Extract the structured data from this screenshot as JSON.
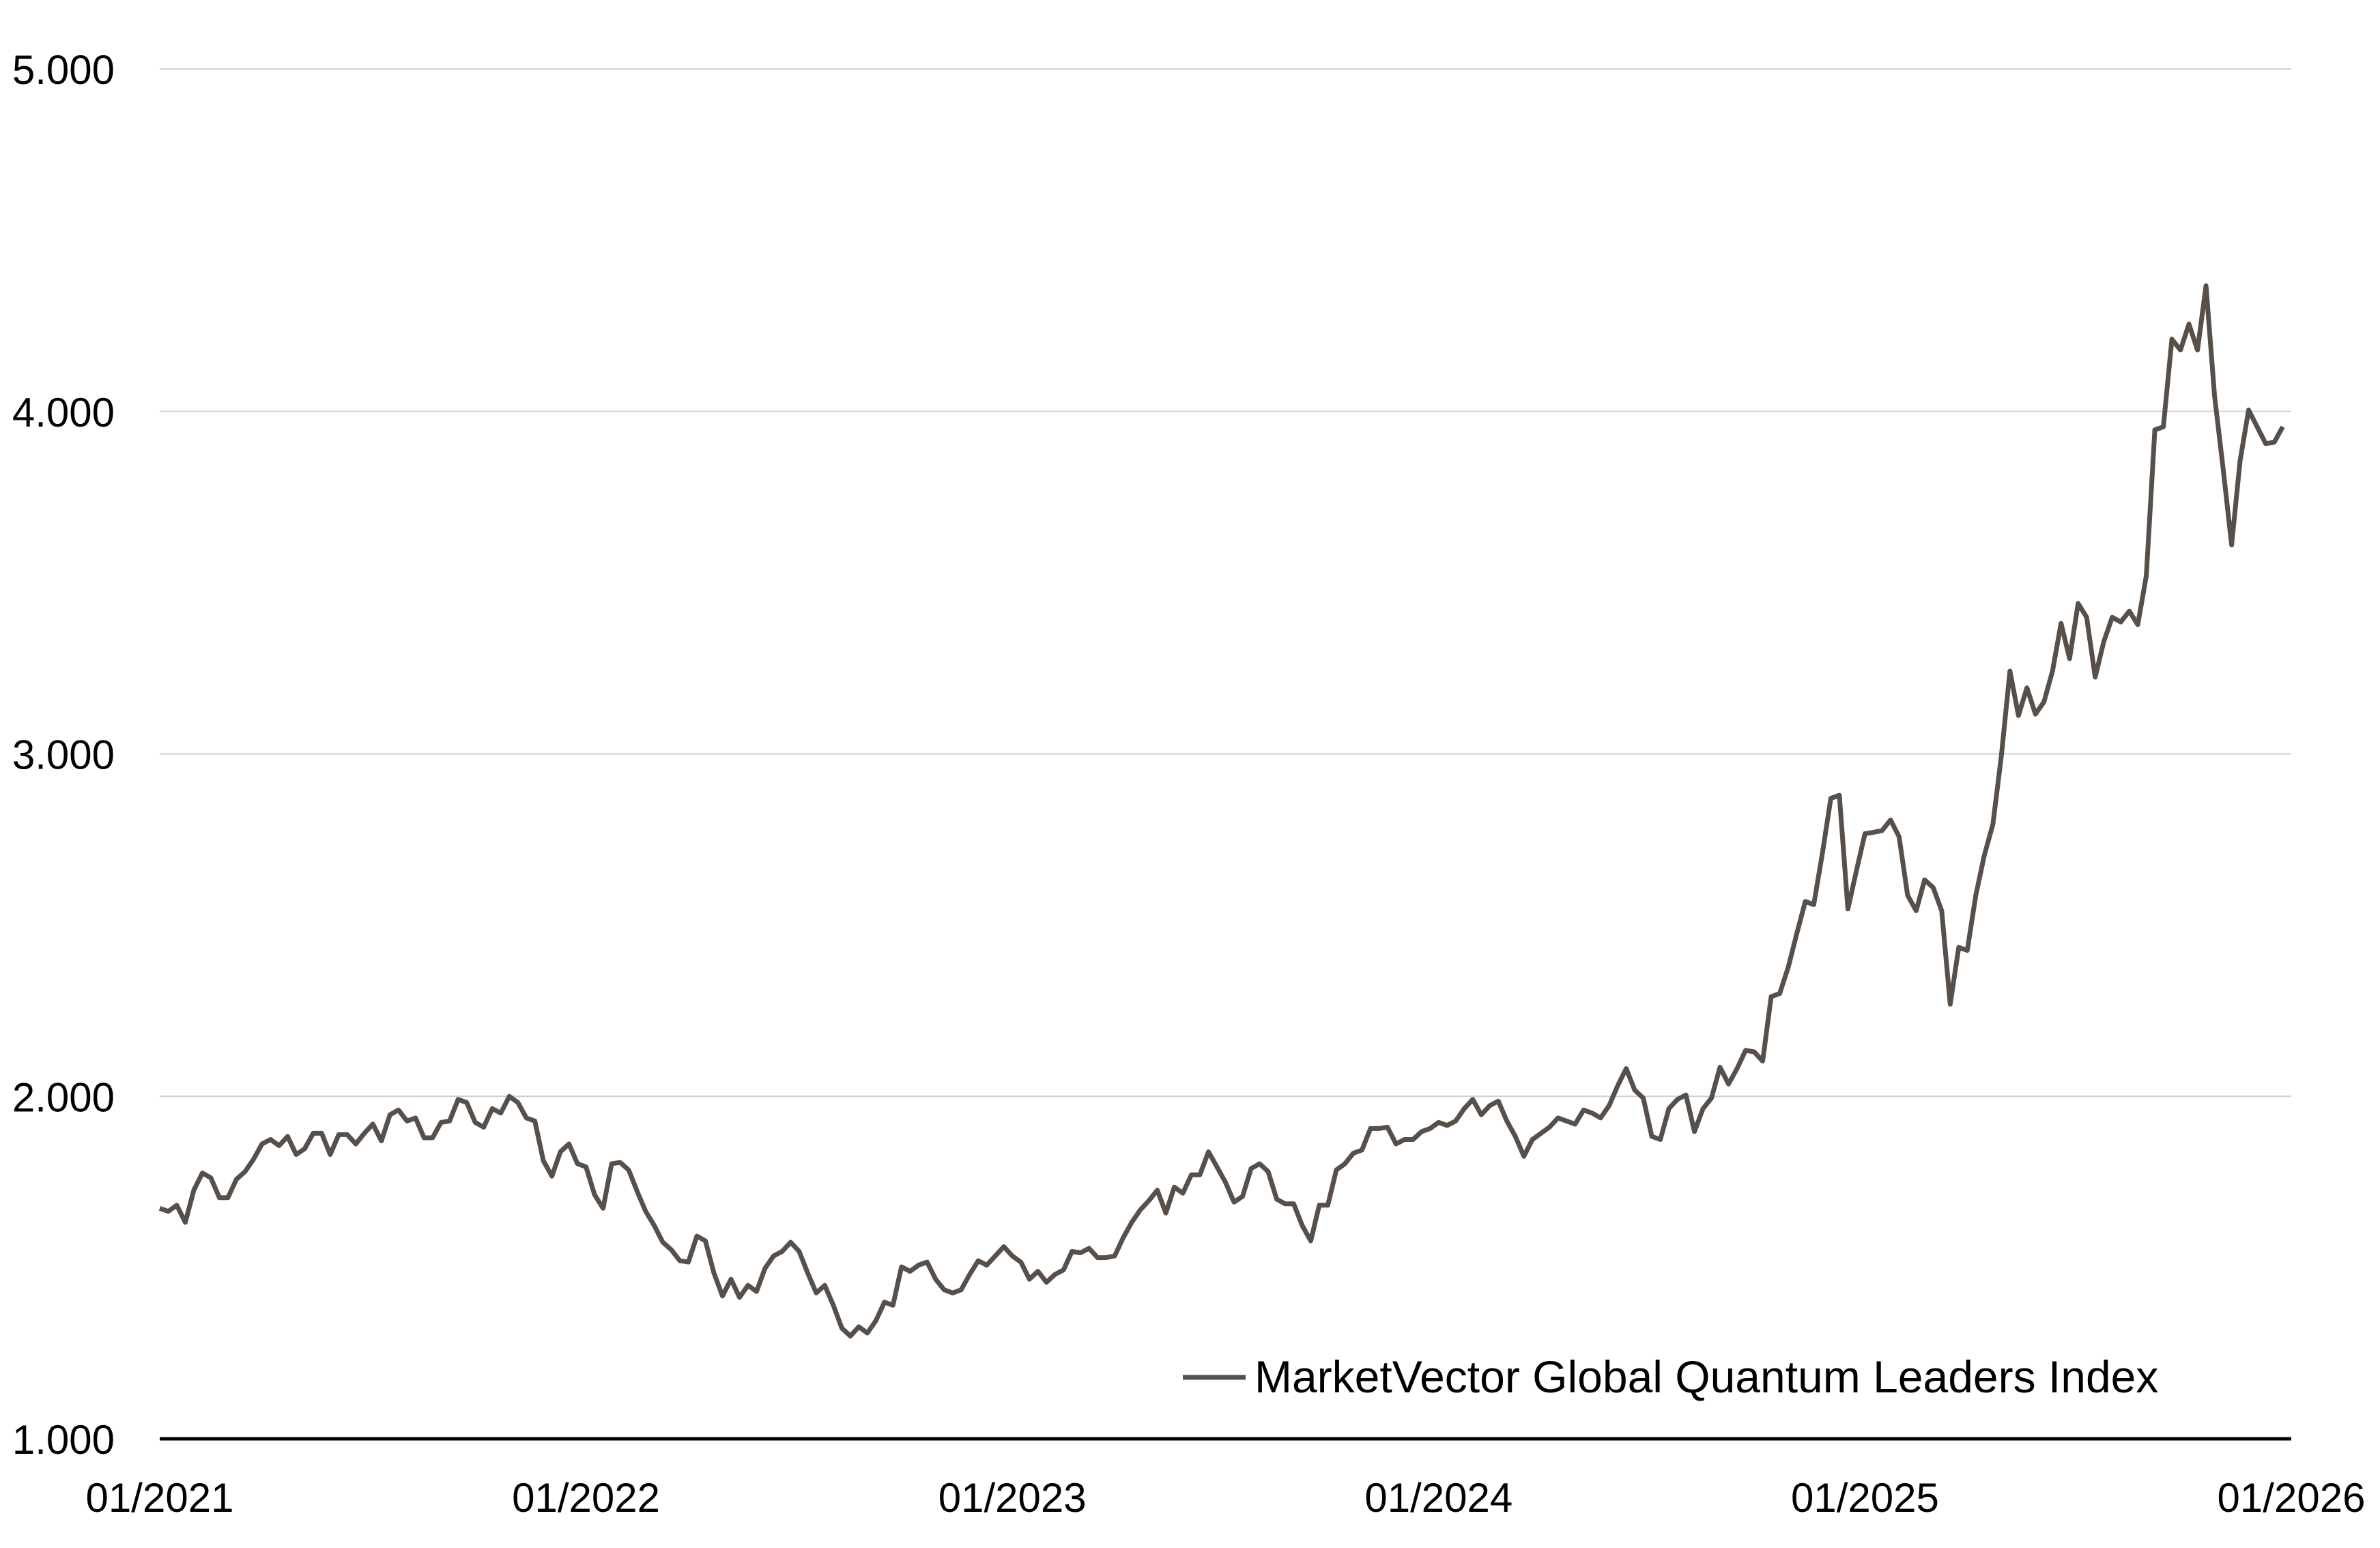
{
  "chart_data": {
    "type": "line",
    "title": "",
    "xlabel": "",
    "ylabel": "",
    "x_start": "01/2021",
    "x_end": "12/2025",
    "x_frequency": "weekly (approx.)",
    "xlim_years": [
      2021,
      2026
    ],
    "ylim": [
      1000,
      5000
    ],
    "y_ticks": [
      1000,
      2000,
      3000,
      4000,
      5000
    ],
    "y_tick_labels": [
      "1.000",
      "2.000",
      "3.000",
      "4.000",
      "5.000"
    ],
    "x_ticks": [
      2021,
      2022,
      2023,
      2024,
      2025,
      2026
    ],
    "x_tick_labels": [
      "01/2021",
      "01/2022",
      "01/2023",
      "01/2024",
      "01/2025",
      "01/2026"
    ],
    "grid": "horizontal",
    "legend_position": "bottom-right",
    "colors": {
      "line": "#574f4a",
      "grid": "#d0d0d0",
      "axis": "#000000"
    },
    "series": [
      {
        "name": "MarketVector Global Quantum Leaders Index",
        "values": [
          1673,
          1664,
          1682,
          1632,
          1726,
          1776,
          1762,
          1704,
          1704,
          1758,
          1780,
          1816,
          1861,
          1874,
          1856,
          1883,
          1830,
          1847,
          1892,
          1892,
          1830,
          1888,
          1888,
          1861,
          1892,
          1919,
          1870,
          1946,
          1960,
          1928,
          1937,
          1879,
          1879,
          1924,
          1928,
          1991,
          1982,
          1924,
          1910,
          1964,
          1951,
          2000,
          1982,
          1937,
          1928,
          1812,
          1767,
          1838,
          1861,
          1803,
          1794,
          1713,
          1673,
          1803,
          1807,
          1785,
          1722,
          1664,
          1623,
          1574,
          1552,
          1520,
          1516,
          1592,
          1578,
          1484,
          1417,
          1466,
          1413,
          1448,
          1430,
          1498,
          1534,
          1547,
          1574,
          1547,
          1484,
          1426,
          1448,
          1390,
          1323,
          1300,
          1327,
          1309,
          1345,
          1399,
          1390,
          1502,
          1489,
          1507,
          1516,
          1466,
          1435,
          1426,
          1435,
          1480,
          1520,
          1507,
          1534,
          1561,
          1534,
          1516,
          1466,
          1489,
          1457,
          1480,
          1493,
          1547,
          1543,
          1556,
          1529,
          1529,
          1534,
          1587,
          1632,
          1668,
          1695,
          1726,
          1659,
          1735,
          1717,
          1771,
          1771,
          1838,
          1794,
          1749,
          1691,
          1708,
          1789,
          1803,
          1780,
          1700,
          1686,
          1686,
          1623,
          1578,
          1682,
          1682,
          1785,
          1803,
          1834,
          1843,
          1906,
          1906,
          1910,
          1861,
          1874,
          1874,
          1897,
          1906,
          1924,
          1915,
          1928,
          1964,
          1991,
          1946,
          1973,
          1986,
          1928,
          1883,
          1825,
          1874,
          1892,
          1910,
          1937,
          1928,
          1919,
          1960,
          1951,
          1937,
          1973,
          2031,
          2081,
          2018,
          1995,
          1883,
          1874,
          1964,
          1991,
          2004,
          1897,
          1964,
          1995,
          2085,
          2036,
          2081,
          2134,
          2130,
          2103,
          2291,
          2300,
          2377,
          2475,
          2569,
          2560,
          2708,
          2870,
          2879,
          2547,
          2659,
          2767,
          2771,
          2776,
          2807,
          2758,
          2587,
          2542,
          2632,
          2610,
          2542,
          2269,
          2435,
          2426,
          2587,
          2704,
          2794,
          2995,
          3242,
          3112,
          3193,
          3116,
          3152,
          3242,
          3381,
          3278,
          3439,
          3399,
          3224,
          3327,
          3399,
          3385,
          3417,
          3377,
          3520,
          3946,
          3955,
          4211,
          4179,
          4255,
          4179,
          4367,
          4045,
          3834,
          3610,
          3856,
          4004,
          3955,
          3906,
          3910,
          3955
        ]
      }
    ]
  }
}
